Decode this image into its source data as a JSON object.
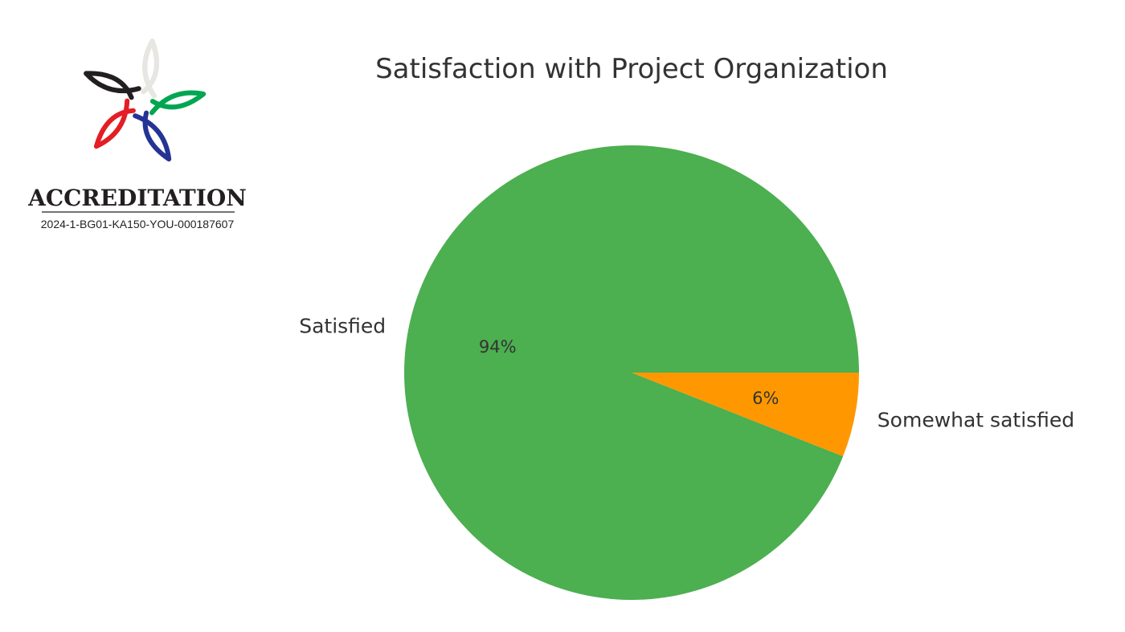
{
  "logo": {
    "word": "ACCREDITATION",
    "code": "2024-1-BG01-KA150-YOU-000187607",
    "petal_colors": [
      "#f4e800",
      "#00a651",
      "#253494",
      "#e31e24",
      "#231f20",
      "#e6e6e6"
    ]
  },
  "chart_data": {
    "type": "pie",
    "title": "Satisfaction with Project Organization",
    "slices": [
      {
        "label": "Satisfied",
        "value": 94,
        "pct_label": "94%",
        "color": "#4caf50"
      },
      {
        "label": "Somewhat satisfied",
        "value": 6,
        "pct_label": "6%",
        "color": "#ff9800"
      }
    ],
    "start_angle_deg": 0,
    "direction": "counterclockwise"
  }
}
